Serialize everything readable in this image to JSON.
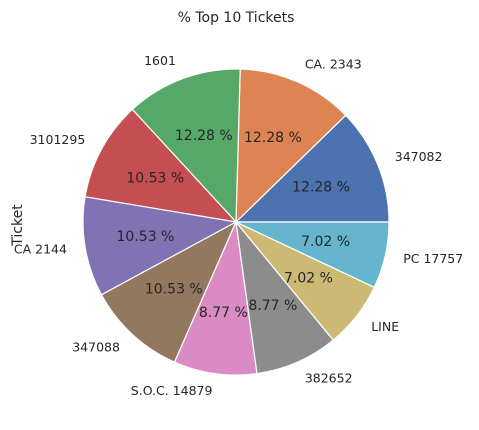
{
  "chart_data": {
    "type": "pie",
    "title": "% Top 10 Tickets",
    "ylabel": "Ticket",
    "start_angle_deg": 0,
    "direction": "counterclockwise",
    "categories": [
      "347082",
      "CA. 2343",
      "1601",
      "3101295",
      "CA 2144",
      "347088",
      "S.O.C. 14879",
      "382652",
      "LINE",
      "PC 17757"
    ],
    "values": [
      7,
      7,
      7,
      6,
      6,
      6,
      5,
      5,
      4,
      4
    ],
    "percent_labels": [
      "12.28 %",
      "12.28 %",
      "12.28 %",
      "10.53 %",
      "10.53 %",
      "10.53 %",
      "8.77 %",
      "8.77 %",
      "7.02 %",
      "7.02 %"
    ],
    "colors": [
      "#4c72b0",
      "#dd8452",
      "#55a868",
      "#c44e52",
      "#8172b3",
      "#937860",
      "#da8bc3",
      "#8c8c8c",
      "#ccb974",
      "#64b5cd"
    ],
    "legend": "none"
  }
}
